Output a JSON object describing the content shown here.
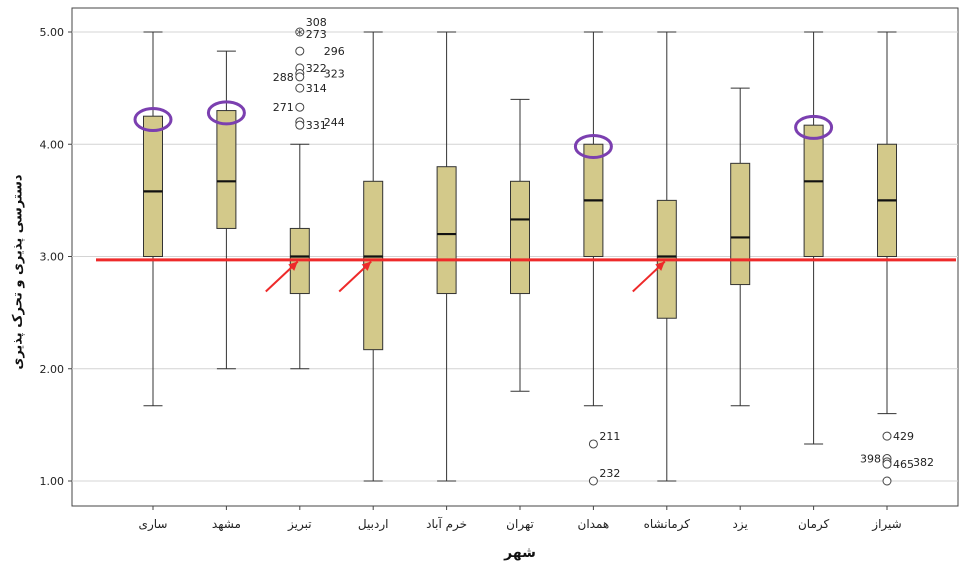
{
  "chart_data": {
    "type": "box",
    "xlabel": "شهر",
    "ylabel": "دسترسی پذیری و تحرک پذیری",
    "ylim": [
      0.9,
      5.2
    ],
    "yticks": [
      "1.00",
      "2.00",
      "3.00",
      "4.00",
      "5.00"
    ],
    "grid": true,
    "box_color": "#d3c98a",
    "reference_line": {
      "value": 2.97,
      "color": "#ee2a2a"
    },
    "boxes": [
      {
        "city": "ساری",
        "min": 1.67,
        "q1": 3.0,
        "median": 3.58,
        "q3": 4.25,
        "max": 5.0,
        "outliers": []
      },
      {
        "city": "مشهد",
        "min": 2.0,
        "q1": 3.25,
        "median": 3.67,
        "q3": 4.3,
        "max": 4.83,
        "outliers": []
      },
      {
        "city": "تبریز",
        "min": 2.0,
        "q1": 2.67,
        "median": 3.0,
        "q3": 3.25,
        "max": 4.0,
        "outliers": [
          {
            "value": 5.0,
            "label": "308",
            "symbol": "circle"
          },
          {
            "value": 4.98,
            "label": "273",
            "symbol": "star"
          },
          {
            "value": 4.83,
            "label": "296",
            "symbol": "circle"
          },
          {
            "value": 4.68,
            "label": "322",
            "symbol": "circle"
          },
          {
            "value": 4.63,
            "label": "323",
            "symbol": "circle"
          },
          {
            "value": 4.6,
            "label": "288",
            "symbol": "circle"
          },
          {
            "value": 4.5,
            "label": "314",
            "symbol": "circle"
          },
          {
            "value": 4.33,
            "label": "271",
            "symbol": "circle"
          },
          {
            "value": 4.2,
            "label": "244",
            "symbol": "circle"
          },
          {
            "value": 4.17,
            "label": "331",
            "symbol": "circle"
          }
        ]
      },
      {
        "city": "اردبیل",
        "min": 1.0,
        "q1": 2.17,
        "median": 3.0,
        "q3": 3.67,
        "max": 5.0,
        "outliers": []
      },
      {
        "city": "خرم آباد",
        "min": 1.0,
        "q1": 2.67,
        "median": 3.2,
        "q3": 3.8,
        "max": 5.0,
        "outliers": []
      },
      {
        "city": "تهران",
        "min": 1.8,
        "q1": 2.67,
        "median": 3.33,
        "q3": 3.67,
        "max": 4.4,
        "outliers": []
      },
      {
        "city": "همدان",
        "min": 1.67,
        "q1": 3.0,
        "median": 3.5,
        "q3": 4.0,
        "max": 5.0,
        "outliers": [
          {
            "value": 1.33,
            "label": "211",
            "symbol": "circle"
          },
          {
            "value": 1.0,
            "label": "232",
            "symbol": "circle"
          }
        ]
      },
      {
        "city": "کرمانشاه",
        "min": 1.0,
        "q1": 2.45,
        "median": 3.0,
        "q3": 3.5,
        "max": 5.0,
        "outliers": []
      },
      {
        "city": "یزد",
        "min": 1.67,
        "q1": 2.75,
        "median": 3.17,
        "q3": 3.83,
        "max": 4.5,
        "outliers": []
      },
      {
        "city": "کرمان",
        "min": 1.33,
        "q1": 3.0,
        "median": 3.67,
        "q3": 4.17,
        "max": 5.0,
        "outliers": []
      },
      {
        "city": "شیراز",
        "min": 1.6,
        "q1": 3.0,
        "median": 3.5,
        "q3": 4.0,
        "max": 5.0,
        "outliers": [
          {
            "value": 1.4,
            "label": "429",
            "symbol": "circle"
          },
          {
            "value": 1.2,
            "label": "398",
            "symbol": "circle"
          },
          {
            "value": 1.17,
            "label": "382",
            "symbol": "circle"
          },
          {
            "value": 1.15,
            "label": "465",
            "symbol": "circle"
          },
          {
            "value": 1.0,
            "label": "",
            "symbol": "circle"
          }
        ]
      }
    ],
    "highlights": {
      "ellipse_color": "#7b3fb0",
      "ellipses": [
        {
          "city": "ساری",
          "value": 4.22
        },
        {
          "city": "مشهد",
          "value": 4.28
        },
        {
          "city": "همدان",
          "value": 3.98
        },
        {
          "city": "کرمان",
          "value": 4.15
        }
      ],
      "arrow_color": "#ee2a2a",
      "arrows": [
        {
          "city": "تبریز",
          "value": 3.0
        },
        {
          "city": "اردبیل",
          "value": 3.0
        },
        {
          "city": "کرمانشاه",
          "value": 3.0
        }
      ]
    }
  }
}
